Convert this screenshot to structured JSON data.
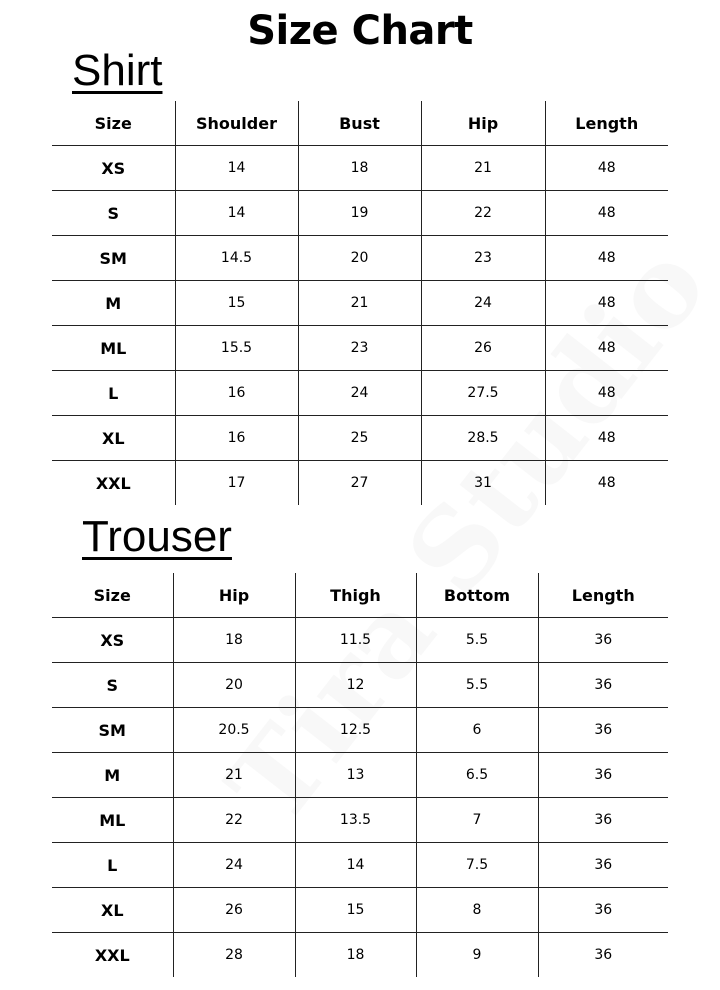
{
  "title": "Size Chart",
  "watermark": "Tira Studio",
  "shirt": {
    "heading": "Shirt",
    "columns": [
      "Size",
      "Shoulder",
      "Bust",
      "Hip",
      "Length"
    ],
    "rows": [
      [
        "XS",
        "14",
        "18",
        "21",
        "48"
      ],
      [
        "S",
        "14",
        "19",
        "22",
        "48"
      ],
      [
        "SM",
        "14.5",
        "20",
        "23",
        "48"
      ],
      [
        "M",
        "15",
        "21",
        "24",
        "48"
      ],
      [
        "ML",
        "15.5",
        "23",
        "26",
        "48"
      ],
      [
        "L",
        "16",
        "24",
        "27.5",
        "48"
      ],
      [
        "XL",
        "16",
        "25",
        "28.5",
        "48"
      ],
      [
        "XXL",
        "17",
        "27",
        "31",
        "48"
      ]
    ]
  },
  "trouser": {
    "heading": "Trouser",
    "columns": [
      "Size",
      "Hip",
      "Thigh",
      "Bottom",
      "Length"
    ],
    "rows": [
      [
        "XS",
        "18",
        "11.5",
        "5.5",
        "36"
      ],
      [
        "S",
        "20",
        "12",
        "5.5",
        "36"
      ],
      [
        "SM",
        "20.5",
        "12.5",
        "6",
        "36"
      ],
      [
        "M",
        "21",
        "13",
        "6.5",
        "36"
      ],
      [
        "ML",
        "22",
        "13.5",
        "7",
        "36"
      ],
      [
        "L",
        "24",
        "14",
        "7.5",
        "36"
      ],
      [
        "XL",
        "26",
        "15",
        "8",
        "36"
      ],
      [
        "XXL",
        "28",
        "18",
        "9",
        "36"
      ]
    ]
  }
}
